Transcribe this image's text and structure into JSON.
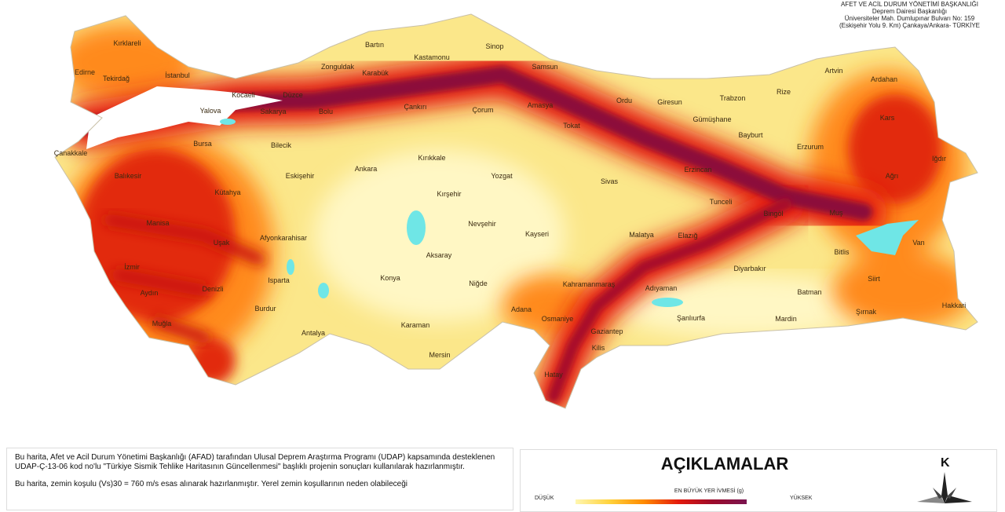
{
  "header": {
    "line1": "AFET VE ACİL DURUM YÖNETİMİ BAŞKANLIĞI",
    "line2": "Deprem Dairesi Başkanlığı",
    "line3": "Üniversiteler Mah. Dumlupınar Bulvarı No: 159",
    "line4": "(Eskişehir Yolu 9. Km) Çankaya/Ankara- TÜRKİYE"
  },
  "cities": [
    "Kırklareli",
    "Edirne",
    "Tekirdağ",
    "İstanbul",
    "Kocaeli",
    "Düzce",
    "Yalova",
    "Sakarya",
    "Bolu",
    "Zonguldak",
    "Bartın",
    "Karabük",
    "Kastamonu",
    "Sinop",
    "Samsun",
    "Çankırı",
    "Çorum",
    "Amasya",
    "Tokat",
    "Ordu",
    "Giresun",
    "Trabzon",
    "Rize",
    "Artvin",
    "Ardahan",
    "Kars",
    "Gümüşhane",
    "Bayburt",
    "Erzurum",
    "Iğdır",
    "Ağrı",
    "Erzincan",
    "Bursa",
    "Bilecik",
    "Çanakkale",
    "Balıkesir",
    "Eskişehir",
    "Ankara",
    "Kırıkkale",
    "Yozgat",
    "Sivas",
    "Kütahya",
    "Kırşehir",
    "Tunceli",
    "Bingöl",
    "Muş",
    "Manisa",
    "Nevşehir",
    "Kayseri",
    "Malatya",
    "Elazığ",
    "Van",
    "Uşak",
    "Afyonkarahisar",
    "Aksaray",
    "Bitlis",
    "İzmir",
    "Konya",
    "Niğde",
    "Diyarbakır",
    "Siirt",
    "Aydın",
    "Isparta",
    "Denizli",
    "Kahramanmaraş",
    "Batman",
    "Adıyaman",
    "Burdur",
    "Hakkari",
    "Şırnak",
    "Adana",
    "Osmaniye",
    "Şanlıurfa",
    "Mardin",
    "Muğla",
    "Antalya",
    "Gaziantep",
    "Karaman",
    "Kilis",
    "Mersin",
    "Hatay"
  ],
  "description": {
    "p1": "Bu harita, Afet ve Acil Durum Yönetimi Başkanlığı (AFAD) tarafından Ulusal Deprem Araştırma Programı (UDAP) kapsamında desteklenen UDAP-Ç-13-06 kod no'lu \"Türkiye Sismik Tehlike Haritasının Güncellenmesi\" başlıklı projenin sonuçları kullanılarak hazırlanmıştır.",
    "p2": "Bu harita, zemin koşulu (Vs)30 = 760 m/s esas alınarak hazırlanmıştır. Yerel zemin koşullarının neden olabileceği"
  },
  "legend": {
    "title": "AÇIKLAMALAR",
    "scale_label": "EN BÜYÜK YER İVMESİ (g)",
    "low": "DÜŞÜK",
    "high": "YÜKSEK",
    "north": "K",
    "colors": [
      "#fff6b0",
      "#ffd23c",
      "#ff8a00",
      "#e41a0c",
      "#9c0a2a",
      "#7a1550"
    ]
  }
}
